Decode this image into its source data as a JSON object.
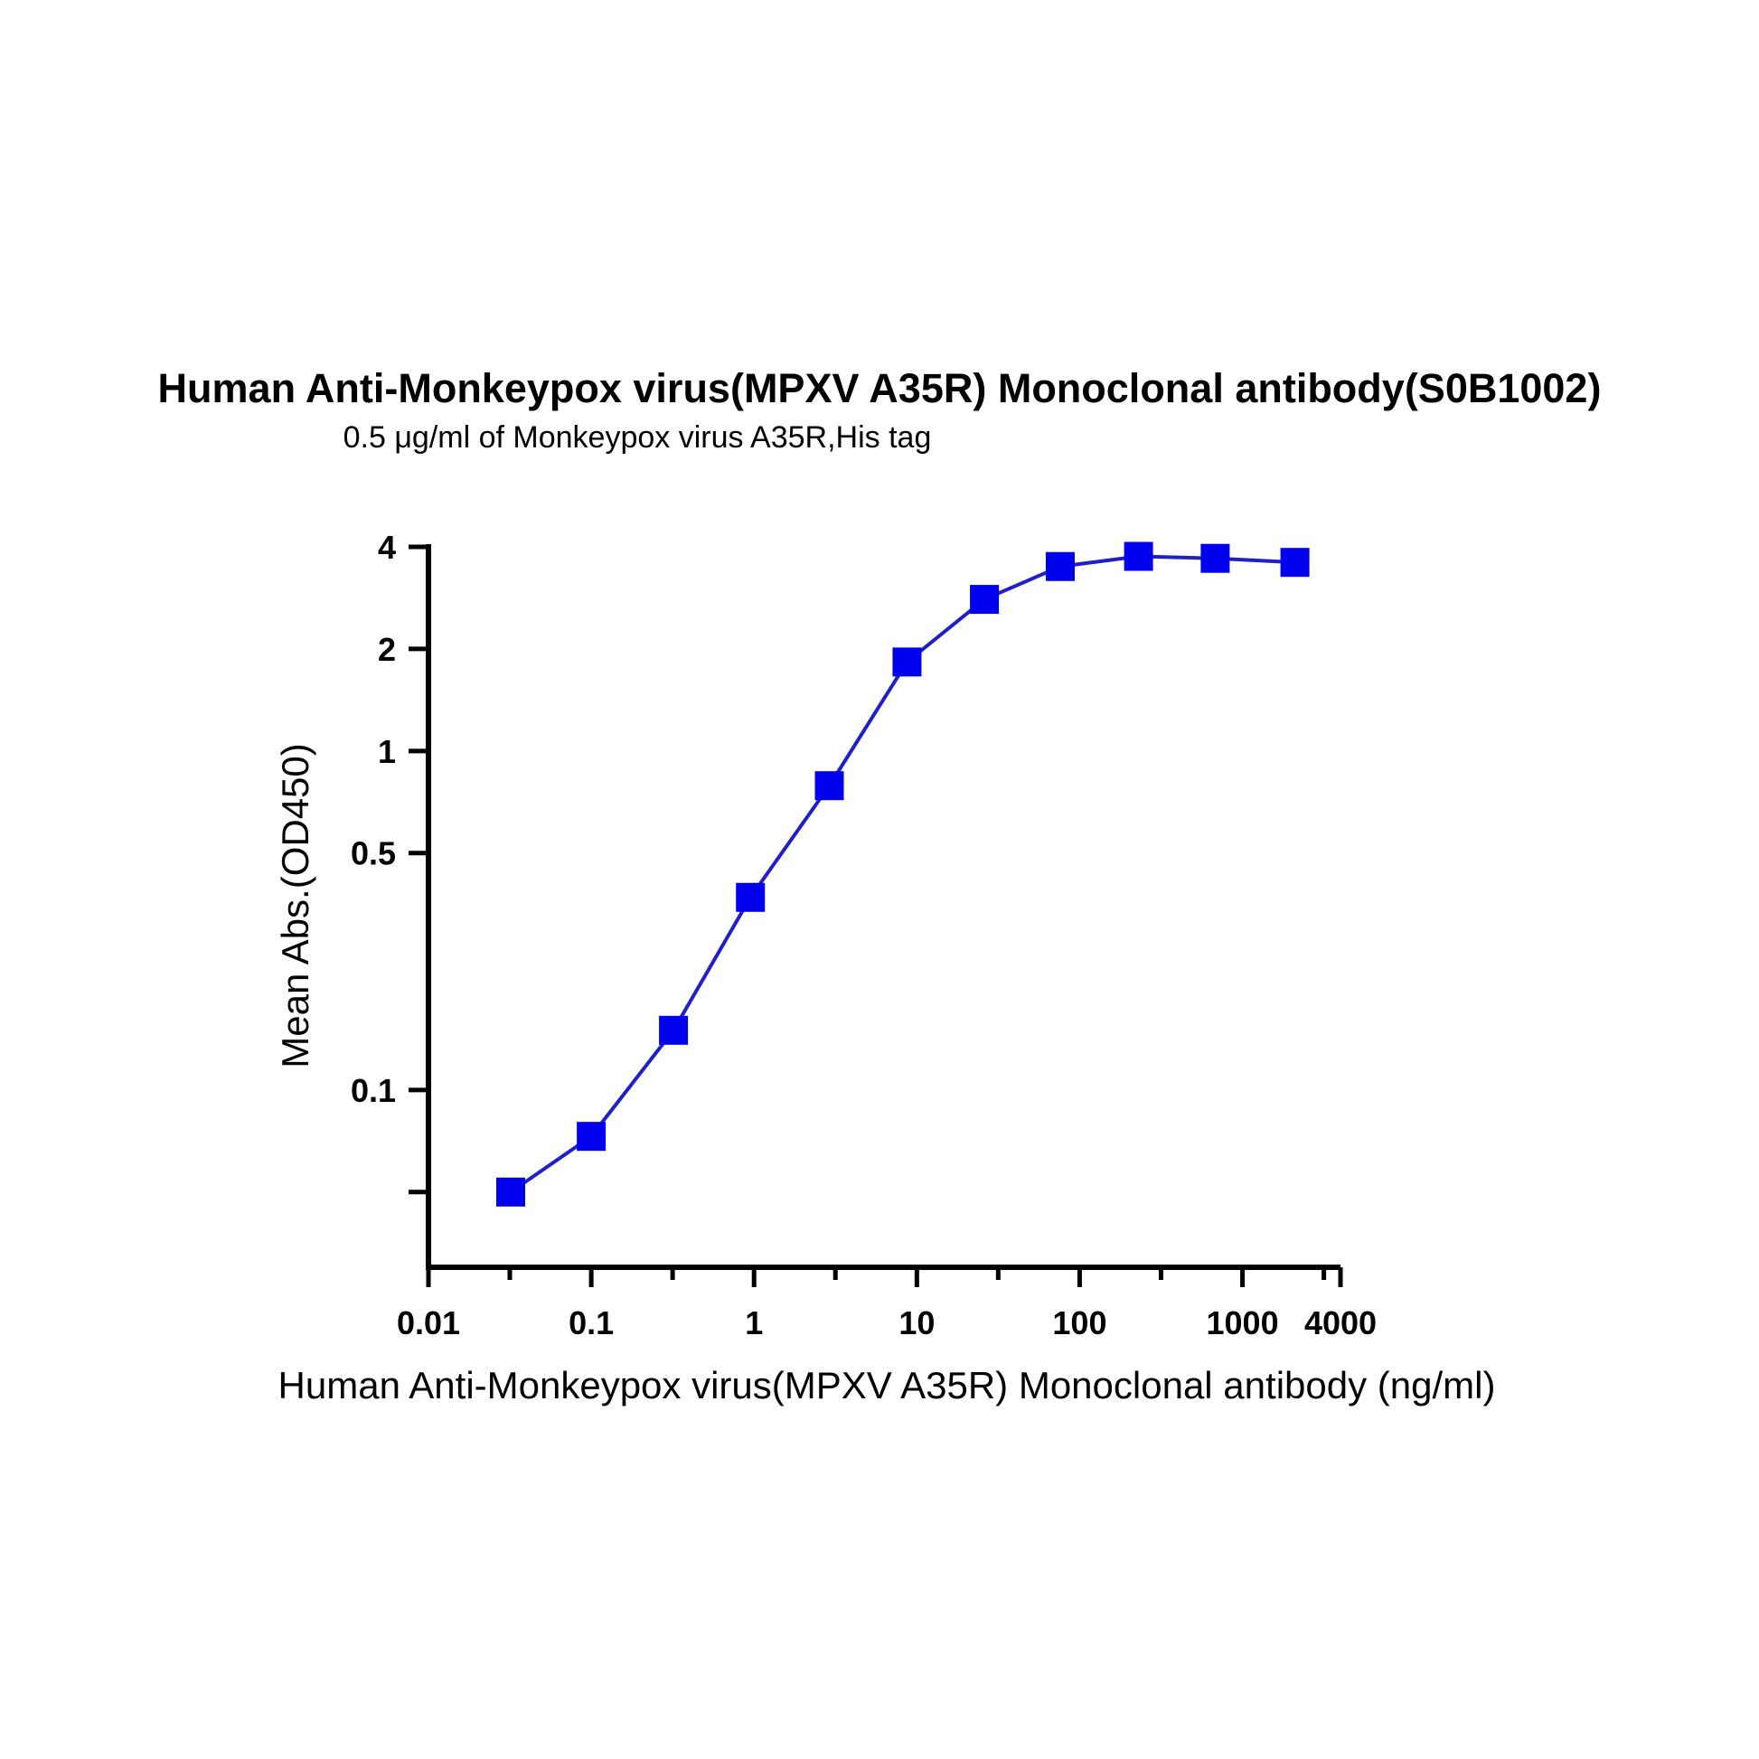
{
  "chart_data": {
    "type": "scatter",
    "title": "Human Anti-Monkeypox virus(MPXV A35R) Monoclonal antibody(S0B1002)",
    "subtitle": "0.5 μg/ml of Monkeypox virus A35R,His tag",
    "xlabel": "Human Anti-Monkeypox virus(MPXV A35R) Monoclonal antibody (ng/ml)",
    "ylabel": "Mean Abs.(OD450)",
    "x_scale": "log",
    "y_scale": "log",
    "xlim": [
      0.01,
      4000
    ],
    "ylim": [
      0.03,
      4
    ],
    "x_ticks": [
      {
        "value": 0.01,
        "label": "0.01"
      },
      {
        "value": 0.1,
        "label": "0.1"
      },
      {
        "value": 1,
        "label": "1"
      },
      {
        "value": 10,
        "label": "10"
      },
      {
        "value": 100,
        "label": "100"
      },
      {
        "value": 1000,
        "label": "1000"
      },
      {
        "value": 4000,
        "label": "4000"
      }
    ],
    "x_minor_ticks": [
      0.0316,
      0.316,
      3.16,
      31.6,
      316,
      3162
    ],
    "y_ticks": [
      {
        "value": 4,
        "label": "4"
      },
      {
        "value": 2,
        "label": "2"
      },
      {
        "value": 1,
        "label": "1"
      },
      {
        "value": 0.5,
        "label": "0.5"
      },
      {
        "value": 0.1,
        "label": "0.1"
      },
      {
        "value": 0.05,
        "label": ""
      }
    ],
    "grid": false,
    "marker": "square",
    "color": "#0000ee",
    "line_color": "#2020c8",
    "series": [
      {
        "x": [
          0.032,
          0.1,
          0.32,
          0.95,
          2.9,
          8.7,
          26,
          76,
          230,
          680,
          2100
        ],
        "y": [
          0.05,
          0.073,
          0.15,
          0.37,
          0.79,
          1.83,
          2.8,
          3.5,
          3.75,
          3.7,
          3.6
        ]
      }
    ]
  }
}
